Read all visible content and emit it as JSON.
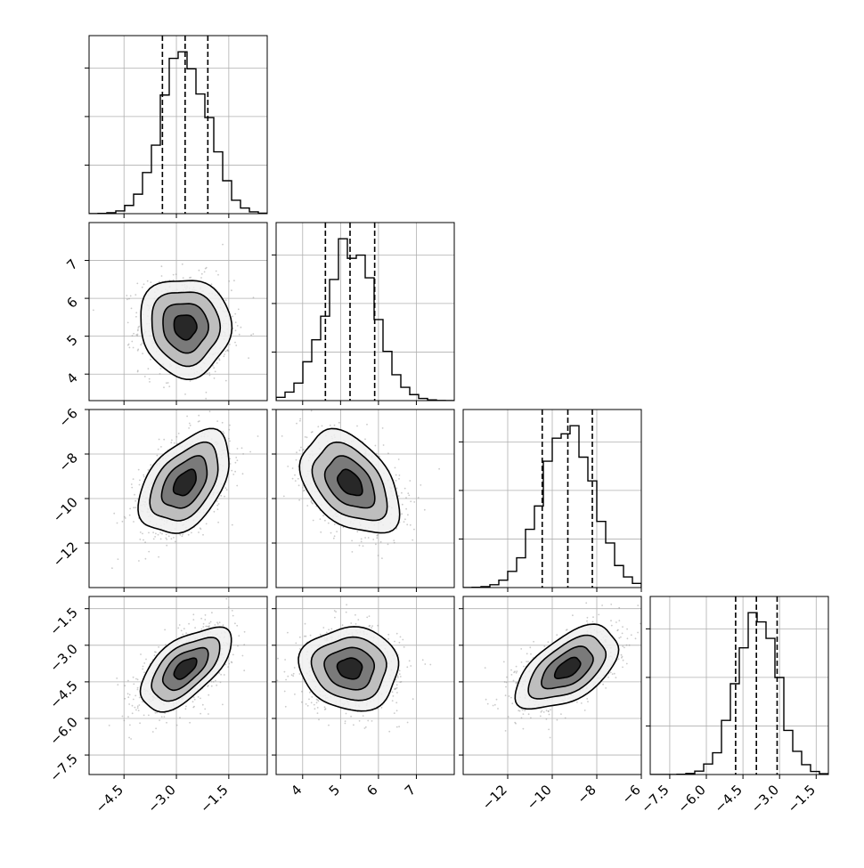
{
  "chart_data": {
    "type": "corner",
    "grid": true,
    "quantiles": [
      0.16,
      0.5,
      0.84
    ],
    "parameters": [
      {
        "ticks": [
          "−4.5",
          "−3.0",
          "−1.5"
        ],
        "tick_values": [
          -4.5,
          -3.0,
          -1.5
        ],
        "range": [
          -5.5,
          -0.4
        ],
        "mean": -2.75,
        "std": 0.65,
        "quantile_values": [
          -3.4,
          -2.75,
          -2.1
        ]
      },
      {
        "ticks": [
          "4",
          "5",
          "6",
          "7"
        ],
        "tick_values": [
          4,
          5,
          6,
          7
        ],
        "range": [
          3.3,
          8.0
        ],
        "mean": 5.25,
        "std": 0.65,
        "quantile_values": [
          4.6,
          5.25,
          5.9
        ]
      },
      {
        "ticks": [
          "−12",
          "−10",
          "−8",
          "−6"
        ],
        "tick_values": [
          -12,
          -10,
          -8,
          -6
        ],
        "range": [
          -14.0,
          -6.0
        ],
        "mean": -9.3,
        "std": 1.15,
        "quantile_values": [
          -10.45,
          -9.3,
          -8.2
        ]
      },
      {
        "ticks": [
          "−7.5",
          "−6.0",
          "−4.5",
          "−3.0",
          "−1.5"
        ],
        "tick_values": [
          -7.5,
          -6.0,
          -4.5,
          -3.0,
          -1.5
        ],
        "range": [
          -8.3,
          -1.0
        ],
        "mean": -3.95,
        "std": 0.85,
        "quantile_values": [
          -4.8,
          -3.95,
          -3.1
        ]
      }
    ],
    "correlations": [
      {
        "i": 1,
        "j": 0,
        "rho": -0.05
      },
      {
        "i": 2,
        "j": 0,
        "rho": 0.45
      },
      {
        "i": 2,
        "j": 1,
        "rho": -0.4
      },
      {
        "i": 3,
        "j": 0,
        "rho": 0.6
      },
      {
        "i": 3,
        "j": 1,
        "rho": -0.05
      },
      {
        "i": 3,
        "j": 2,
        "rho": 0.55
      }
    ],
    "histogram_bins": 20,
    "contour_levels_sigma": [
      0.5,
      1.0,
      1.5,
      2.0
    ],
    "colors": {
      "line": "#000000",
      "grid": "#b0b0b0",
      "points": "#8a8a8a",
      "frame": "#000000"
    }
  }
}
